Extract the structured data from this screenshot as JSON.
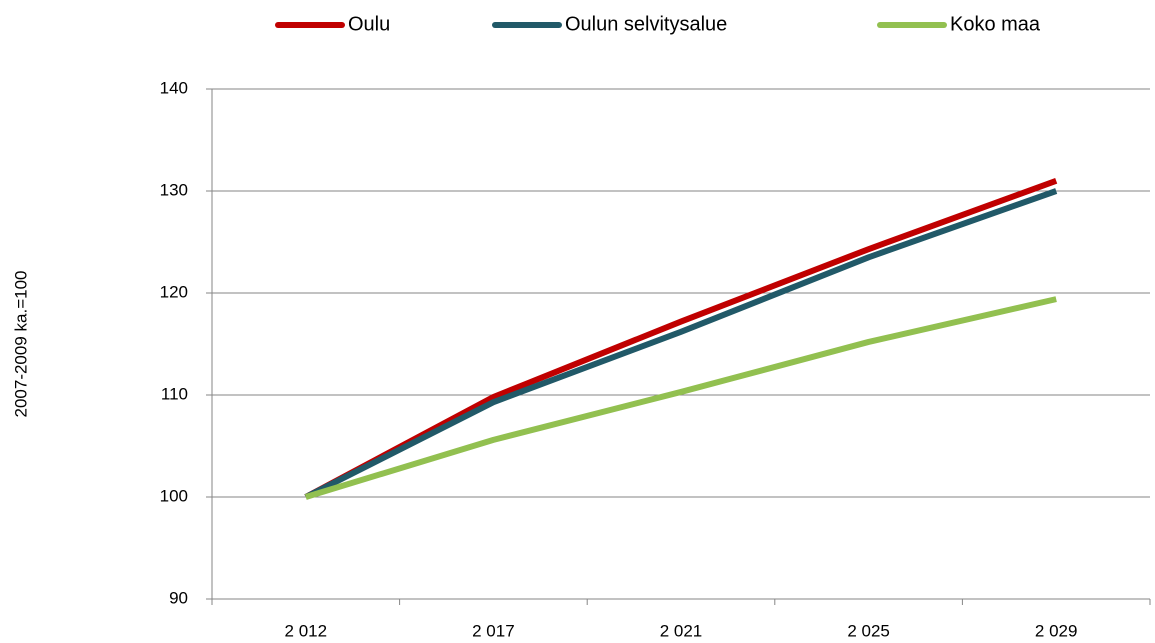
{
  "chart_data": {
    "type": "line",
    "ylabel": "2007-2009 ka.=100",
    "categories": [
      "2 012",
      "2 017",
      "2 021",
      "2 025",
      "2 029"
    ],
    "series": [
      {
        "name": "Oulu",
        "color": "#c00000",
        "values": [
          100,
          109.8,
          117.2,
          124.3,
          131
        ]
      },
      {
        "name": "Oulun selvitysalue",
        "color": "#215968",
        "values": [
          100,
          109.3,
          116.2,
          123.5,
          130
        ]
      },
      {
        "name": "Koko maa",
        "color": "#92c050",
        "values": [
          100,
          105.6,
          110.3,
          115.2,
          119.4
        ]
      }
    ],
    "ylim": [
      90,
      140
    ],
    "yticks": [
      90,
      100,
      110,
      120,
      130,
      140
    ],
    "grid": true,
    "legend": "top"
  }
}
